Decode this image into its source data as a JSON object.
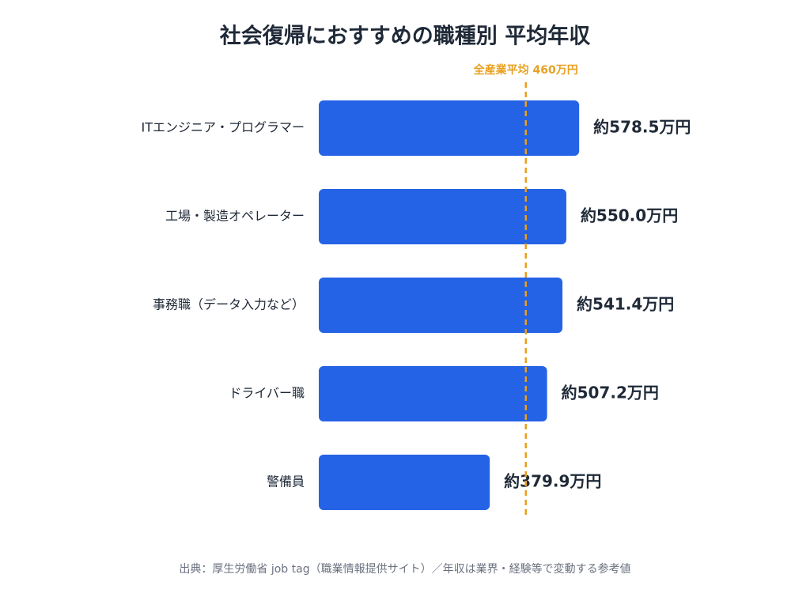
{
  "chart_data": {
    "type": "hbar",
    "title": "社会復帰におすすめの職種別 平均年収",
    "categories": [
      "ITエンジニア・プログラマー",
      "工場・製造オペレーター",
      "事務職（データ入力など）",
      "ドライバー職",
      "警備員"
    ],
    "values": [
      578.5,
      550.0,
      541.4,
      507.2,
      379.9
    ],
    "value_labels": [
      "約578.5万円",
      "約550.0万円",
      "約541.4万円",
      "約507.2万円",
      "約379.9万円"
    ],
    "color": "#2563e6",
    "xlim": [
      0,
      1000
    ],
    "reference_line": {
      "value": 460,
      "label": "全産業平均 460万円",
      "color": "#e8a020"
    },
    "source": "出典：厚生労働省 job tag（職業情報提供サイト）／年収は業界・経験等で変動する参考値"
  }
}
